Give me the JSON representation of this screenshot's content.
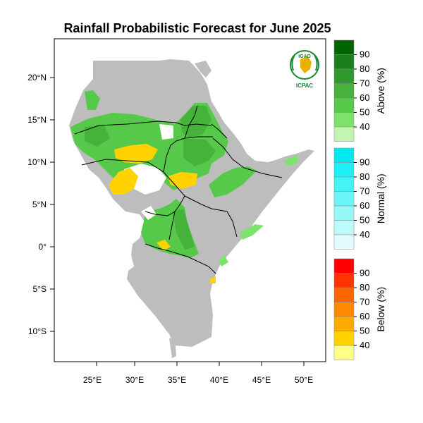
{
  "title": "Rainfall Probabilistic Forecast for June 2025",
  "logo": {
    "top_text": "IGAD",
    "bottom_text": "ICPAC"
  },
  "axes": {
    "lon_ticks": [
      "25°E",
      "30°E",
      "35°E",
      "40°E",
      "45°E",
      "50°E"
    ],
    "lat_ticks": [
      "20°N",
      "15°N",
      "10°N",
      "5°N",
      "0°",
      "5°S",
      "10°S"
    ]
  },
  "legend": [
    {
      "key": "above",
      "label": "Above (%)",
      "ticks": [
        "90",
        "80",
        "70",
        "60",
        "50",
        "40"
      ],
      "colors": [
        "#006400",
        "#1a7f1a",
        "#2e9a2e",
        "#45b23a",
        "#57c94a",
        "#7de36a",
        "#c2f5b0"
      ]
    },
    {
      "key": "normal",
      "label": "Normal (%)",
      "ticks": [
        "90",
        "80",
        "70",
        "60",
        "50",
        "40"
      ],
      "colors": [
        "#00e9f0",
        "#1ef0f5",
        "#44f3f6",
        "#6cf5f7",
        "#95f8f9",
        "#bdfbfb",
        "#e3fdfd"
      ]
    },
    {
      "key": "below",
      "label": "Below (%)",
      "ticks": [
        "90",
        "80",
        "70",
        "60",
        "50",
        "40"
      ],
      "colors": [
        "#ff0000",
        "#ff3300",
        "#ff6600",
        "#ff8800",
        "#ffaa00",
        "#ffd200",
        "#ffff88"
      ]
    }
  ],
  "colors": {
    "land": "#bdbdbd",
    "border": "#000000"
  }
}
